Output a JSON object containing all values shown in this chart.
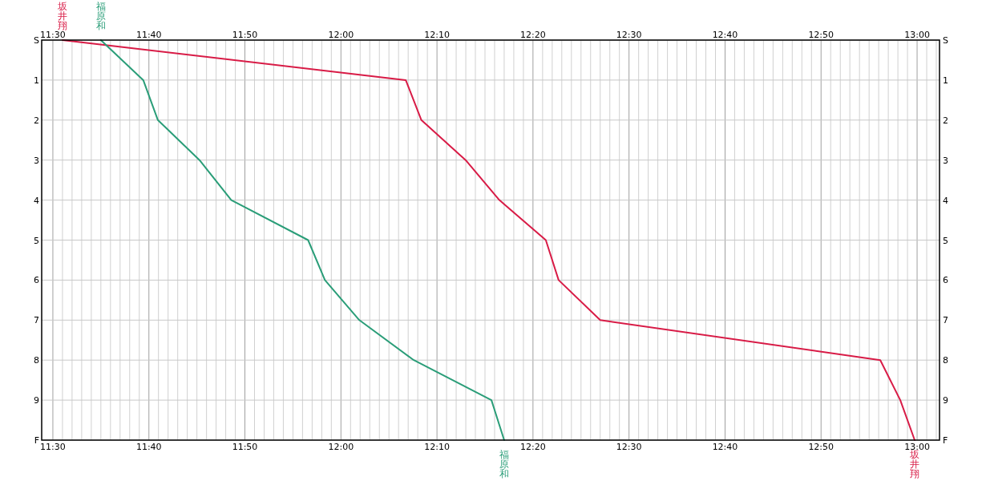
{
  "chart_data": {
    "type": "line",
    "series": [
      {
        "name": "坂井翔",
        "color": "#d81b46",
        "x": [
          11.5167,
          12.1125,
          12.1396,
          12.2164,
          12.275,
          12.3556,
          12.3778,
          12.45,
          12.9361,
          12.9708,
          12.9958
        ],
        "values": [
          0,
          1,
          2,
          3,
          4,
          5,
          6,
          7,
          8,
          9,
          10
        ]
      },
      {
        "name": "福原和",
        "color": "#2a9d78",
        "x": [
          11.5833,
          11.6569,
          11.6823,
          11.7545,
          11.8097,
          11.943,
          11.9722,
          12.0319,
          12.1264,
          12.2612,
          12.2833
        ],
        "values": [
          0,
          1,
          2,
          3,
          4,
          5,
          6,
          7,
          8,
          9,
          10
        ]
      }
    ],
    "xlim": [
      11.4806,
      13.0389
    ],
    "xticks": [
      {
        "value": 11.5,
        "label": "11:30"
      },
      {
        "value": 11.5167,
        "label": null
      },
      {
        "value": 11.5333,
        "label": null
      },
      {
        "value": 11.55,
        "label": null
      },
      {
        "value": 11.5667,
        "label": null
      },
      {
        "value": 11.5833,
        "label": null
      },
      {
        "value": 11.6,
        "label": null
      },
      {
        "value": 11.6167,
        "label": null
      },
      {
        "value": 11.6333,
        "label": null
      },
      {
        "value": 11.65,
        "label": null
      },
      {
        "value": 11.6667,
        "label": "11:40"
      },
      {
        "value": 11.6833,
        "label": null
      },
      {
        "value": 11.7,
        "label": null
      },
      {
        "value": 11.7167,
        "label": null
      },
      {
        "value": 11.7333,
        "label": null
      },
      {
        "value": 11.75,
        "label": null
      },
      {
        "value": 11.7667,
        "label": null
      },
      {
        "value": 11.7833,
        "label": null
      },
      {
        "value": 11.8,
        "label": null
      },
      {
        "value": 11.8167,
        "label": null
      },
      {
        "value": 11.8333,
        "label": "11:50"
      },
      {
        "value": 11.85,
        "label": null
      },
      {
        "value": 11.8667,
        "label": null
      },
      {
        "value": 11.8833,
        "label": null
      },
      {
        "value": 11.9,
        "label": null
      },
      {
        "value": 11.9167,
        "label": null
      },
      {
        "value": 11.9333,
        "label": null
      },
      {
        "value": 11.95,
        "label": null
      },
      {
        "value": 11.9667,
        "label": null
      },
      {
        "value": 11.9833,
        "label": null
      },
      {
        "value": 12.0,
        "label": "12:00"
      },
      {
        "value": 12.0167,
        "label": null
      },
      {
        "value": 12.0333,
        "label": null
      },
      {
        "value": 12.05,
        "label": null
      },
      {
        "value": 12.0667,
        "label": null
      },
      {
        "value": 12.0833,
        "label": null
      },
      {
        "value": 12.1,
        "label": null
      },
      {
        "value": 12.1167,
        "label": null
      },
      {
        "value": 12.1333,
        "label": null
      },
      {
        "value": 12.15,
        "label": null
      },
      {
        "value": 12.1667,
        "label": "12:10"
      },
      {
        "value": 12.1833,
        "label": null
      },
      {
        "value": 12.2,
        "label": null
      },
      {
        "value": 12.2167,
        "label": null
      },
      {
        "value": 12.2333,
        "label": null
      },
      {
        "value": 12.25,
        "label": null
      },
      {
        "value": 12.2667,
        "label": null
      },
      {
        "value": 12.2833,
        "label": null
      },
      {
        "value": 12.3,
        "label": null
      },
      {
        "value": 12.3167,
        "label": null
      },
      {
        "value": 12.3333,
        "label": "12:20"
      },
      {
        "value": 12.35,
        "label": null
      },
      {
        "value": 12.3667,
        "label": null
      },
      {
        "value": 12.3833,
        "label": null
      },
      {
        "value": 12.4,
        "label": null
      },
      {
        "value": 12.4167,
        "label": null
      },
      {
        "value": 12.4333,
        "label": null
      },
      {
        "value": 12.45,
        "label": null
      },
      {
        "value": 12.4667,
        "label": null
      },
      {
        "value": 12.4833,
        "label": null
      },
      {
        "value": 12.5,
        "label": "12:30"
      },
      {
        "value": 12.5167,
        "label": null
      },
      {
        "value": 12.5333,
        "label": null
      },
      {
        "value": 12.55,
        "label": null
      },
      {
        "value": 12.5667,
        "label": null
      },
      {
        "value": 12.5833,
        "label": null
      },
      {
        "value": 12.6,
        "label": null
      },
      {
        "value": 12.6167,
        "label": null
      },
      {
        "value": 12.6333,
        "label": null
      },
      {
        "value": 12.65,
        "label": null
      },
      {
        "value": 12.6667,
        "label": "12:40"
      },
      {
        "value": 12.6833,
        "label": null
      },
      {
        "value": 12.7,
        "label": null
      },
      {
        "value": 12.7167,
        "label": null
      },
      {
        "value": 12.7333,
        "label": null
      },
      {
        "value": 12.75,
        "label": null
      },
      {
        "value": 12.7667,
        "label": null
      },
      {
        "value": 12.7833,
        "label": null
      },
      {
        "value": 12.8,
        "label": null
      },
      {
        "value": 12.8167,
        "label": null
      },
      {
        "value": 12.8333,
        "label": "12:50"
      },
      {
        "value": 12.85,
        "label": null
      },
      {
        "value": 12.8667,
        "label": null
      },
      {
        "value": 12.8833,
        "label": null
      },
      {
        "value": 12.9,
        "label": null
      },
      {
        "value": 12.9167,
        "label": null
      },
      {
        "value": 12.9333,
        "label": null
      },
      {
        "value": 12.95,
        "label": null
      },
      {
        "value": 12.9667,
        "label": null
      },
      {
        "value": 12.9833,
        "label": null
      },
      {
        "value": 13.0,
        "label": "13:00"
      },
      {
        "value": 13.0167,
        "label": null
      },
      {
        "value": 13.0333,
        "label": null
      }
    ],
    "x2lim": [
      11.4806,
      13.0389
    ],
    "x2ticks": [
      {
        "value": 11.5,
        "label": "11:30"
      },
      {
        "value": 11.6667,
        "label": "11:40"
      },
      {
        "value": 11.8333,
        "label": "11:50"
      },
      {
        "value": 12.0,
        "label": "12:00"
      },
      {
        "value": 12.1667,
        "label": "12:10"
      },
      {
        "value": 12.3333,
        "label": "12:20"
      },
      {
        "value": 12.5,
        "label": "12:30"
      },
      {
        "value": 12.6667,
        "label": "12:40"
      },
      {
        "value": 12.8333,
        "label": "12:50"
      },
      {
        "value": 13.0,
        "label": "13:00"
      }
    ],
    "ylim": [
      10,
      0
    ],
    "yticks": [
      {
        "value": 0,
        "label": "S"
      },
      1,
      2,
      3,
      4,
      5,
      6,
      7,
      8,
      9,
      {
        "value": 10,
        "label": "F"
      }
    ],
    "y2lim": [
      10,
      0
    ],
    "y2ticks": [
      {
        "value": 0,
        "label": "S"
      },
      1,
      2,
      3,
      4,
      5,
      6,
      7,
      8,
      9,
      {
        "value": 10,
        "label": "F"
      }
    ],
    "grid": true,
    "line_style": "solid"
  }
}
